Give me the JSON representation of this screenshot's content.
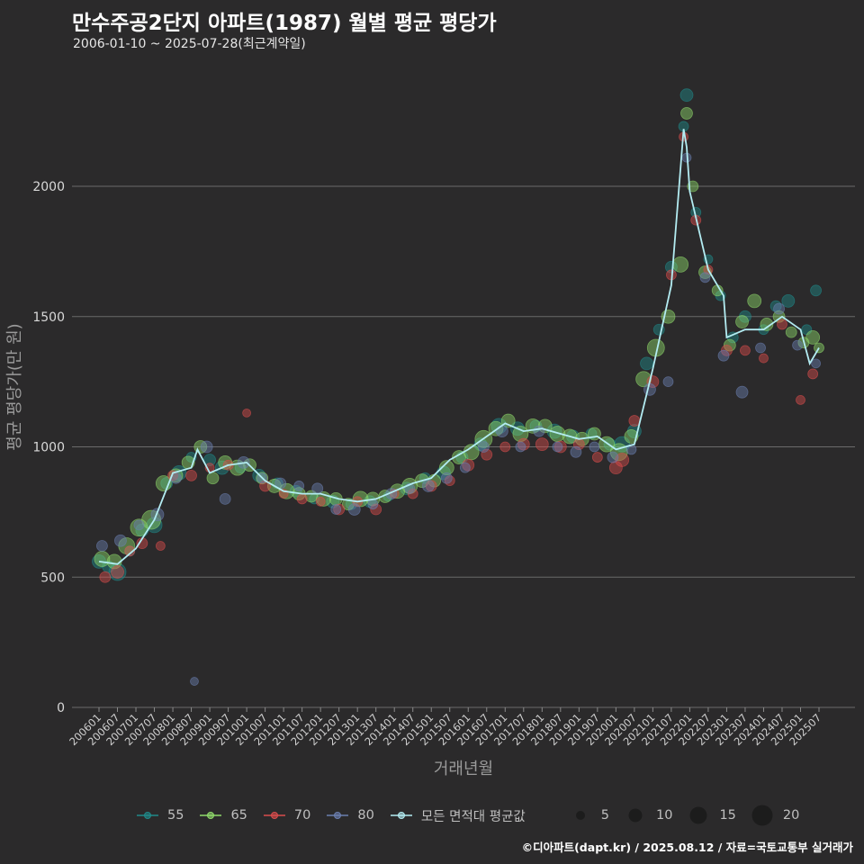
{
  "header": {
    "title": "만수주공2단지 아파트(1987) 월별 평균 평당가",
    "subtitle": "2006-01-10 ~ 2025-07-28(최근계약일)"
  },
  "footer": {
    "credit": "©디아파트(dapt.kr) / 2025.08.12 / 자료=국토교통부 실거래가"
  },
  "colors": {
    "background": "#2b2a2b",
    "grid": "#6b6b6b",
    "area_55": "#1f8a8a",
    "area_65": "#8fd96b",
    "area_70": "#d94c4c",
    "area_80": "#6b7fb0",
    "avg_line": "#b3ecf2"
  },
  "chart_data": {
    "type": "scatter",
    "title": "만수주공2단지 아파트(1987) 월별 평균 평당가",
    "xlabel": "거래년월",
    "ylabel": "평균 평당가(만 원)",
    "ylim": [
      0,
      2400
    ],
    "yticks": [
      0,
      500,
      1000,
      1500,
      2000
    ],
    "grid": true,
    "xticks": [
      "200601",
      "200607",
      "200701",
      "200707",
      "200801",
      "200807",
      "200901",
      "200907",
      "201001",
      "201007",
      "201101",
      "201107",
      "201201",
      "201207",
      "201301",
      "201307",
      "201401",
      "201407",
      "201501",
      "201507",
      "201601",
      "201607",
      "201701",
      "201707",
      "201801",
      "201807",
      "201901",
      "201907",
      "202001",
      "202007",
      "202101",
      "202107",
      "202201",
      "202207",
      "202301",
      "202307",
      "202401",
      "202407",
      "202501",
      "202507"
    ],
    "avg_line_label": "모든 면적대 평균값",
    "average_line": {
      "months": [
        "200601",
        "200607",
        "200701",
        "200707",
        "200801",
        "200807",
        "200809",
        "200901",
        "200907",
        "201001",
        "201007",
        "201101",
        "201107",
        "201201",
        "201207",
        "201301",
        "201307",
        "201401",
        "201407",
        "201501",
        "201507",
        "201601",
        "201607",
        "201701",
        "201707",
        "201801",
        "201807",
        "201901",
        "201907",
        "202001",
        "202007",
        "202101",
        "202107",
        "202111",
        "202112",
        "202201",
        "202207",
        "202212",
        "202301",
        "202307",
        "202401",
        "202407",
        "202501",
        "202504",
        "202507"
      ],
      "values": [
        560,
        550,
        610,
        720,
        900,
        920,
        990,
        900,
        930,
        940,
        870,
        830,
        820,
        820,
        800,
        790,
        800,
        830,
        860,
        880,
        950,
        990,
        1040,
        1090,
        1060,
        1070,
        1050,
        1030,
        1040,
        990,
        1010,
        1300,
        1620,
        2220,
        2150,
        1980,
        1680,
        1580,
        1420,
        1450,
        1450,
        1500,
        1450,
        1320,
        1380
      ]
    },
    "series": [
      {
        "name": "55",
        "points": [
          [
            "200601",
            560,
            10
          ],
          [
            "200604",
            540,
            8
          ],
          [
            "200607",
            520,
            14
          ],
          [
            "200611",
            600,
            6
          ],
          [
            "200703",
            680,
            9
          ],
          [
            "200707",
            700,
            12
          ],
          [
            "200711",
            860,
            8
          ],
          [
            "200803",
            900,
            11
          ],
          [
            "200807",
            960,
            6
          ],
          [
            "200901",
            950,
            8
          ],
          [
            "200905",
            920,
            10
          ],
          [
            "200911",
            920,
            7
          ],
          [
            "201005",
            890,
            9
          ],
          [
            "201011",
            860,
            7
          ],
          [
            "201105",
            830,
            8
          ],
          [
            "201111",
            800,
            6
          ],
          [
            "201205",
            790,
            9
          ],
          [
            "201211",
            780,
            7
          ],
          [
            "201305",
            790,
            8
          ],
          [
            "201311",
            810,
            6
          ],
          [
            "201405",
            840,
            9
          ],
          [
            "201411",
            880,
            7
          ],
          [
            "201505",
            900,
            10
          ],
          [
            "201511",
            960,
            8
          ],
          [
            "201605",
            1010,
            9
          ],
          [
            "201611",
            1080,
            12
          ],
          [
            "201705",
            1070,
            10
          ],
          [
            "201711",
            1080,
            8
          ],
          [
            "201805",
            1060,
            11
          ],
          [
            "201811",
            1040,
            9
          ],
          [
            "201905",
            1050,
            7
          ],
          [
            "201911",
            1010,
            8
          ],
          [
            "202003",
            1010,
            12
          ],
          [
            "202007",
            1060,
            10
          ],
          [
            "202011",
            1320,
            9
          ],
          [
            "202103",
            1450,
            7
          ],
          [
            "202107",
            1690,
            8
          ],
          [
            "202111",
            2230,
            6
          ],
          [
            "202112",
            2350,
            9
          ],
          [
            "202203",
            1900,
            6
          ],
          [
            "202207",
            1720,
            5
          ],
          [
            "202211",
            1580,
            6
          ],
          [
            "202303",
            1420,
            7
          ],
          [
            "202307",
            1500,
            8
          ],
          [
            "202401",
            1450,
            6
          ],
          [
            "202405",
            1540,
            7
          ],
          [
            "202409",
            1560,
            9
          ],
          [
            "202503",
            1450,
            6
          ],
          [
            "202506",
            1600,
            7
          ]
        ]
      },
      {
        "name": "65",
        "points": [
          [
            "200602",
            570,
            12
          ],
          [
            "200606",
            560,
            11
          ],
          [
            "200610",
            620,
            13
          ],
          [
            "200702",
            690,
            14
          ],
          [
            "200706",
            720,
            16
          ],
          [
            "200710",
            860,
            12
          ],
          [
            "200802",
            890,
            10
          ],
          [
            "200806",
            940,
            9
          ],
          [
            "200810",
            1000,
            9
          ],
          [
            "200902",
            880,
            8
          ],
          [
            "200906",
            940,
            10
          ],
          [
            "200910",
            920,
            12
          ],
          [
            "201002",
            930,
            9
          ],
          [
            "201006",
            880,
            8
          ],
          [
            "201010",
            850,
            10
          ],
          [
            "201102",
            830,
            12
          ],
          [
            "201106",
            820,
            9
          ],
          [
            "201110",
            810,
            8
          ],
          [
            "201202",
            800,
            11
          ],
          [
            "201206",
            800,
            9
          ],
          [
            "201210",
            780,
            8
          ],
          [
            "201302",
            800,
            12
          ],
          [
            "201306",
            800,
            10
          ],
          [
            "201310",
            810,
            9
          ],
          [
            "201402",
            830,
            11
          ],
          [
            "201406",
            850,
            12
          ],
          [
            "201410",
            870,
            10
          ],
          [
            "201502",
            870,
            9
          ],
          [
            "201506",
            920,
            11
          ],
          [
            "201510",
            960,
            10
          ],
          [
            "201602",
            980,
            12
          ],
          [
            "201606",
            1030,
            14
          ],
          [
            "201610",
            1070,
            11
          ],
          [
            "201702",
            1100,
            10
          ],
          [
            "201706",
            1050,
            12
          ],
          [
            "201710",
            1080,
            11
          ],
          [
            "201802",
            1080,
            10
          ],
          [
            "201806",
            1050,
            12
          ],
          [
            "201810",
            1040,
            11
          ],
          [
            "201902",
            1030,
            10
          ],
          [
            "201906",
            1050,
            9
          ],
          [
            "201910",
            1010,
            12
          ],
          [
            "202002",
            980,
            14
          ],
          [
            "202006",
            1040,
            10
          ],
          [
            "202010",
            1260,
            12
          ],
          [
            "202102",
            1380,
            14
          ],
          [
            "202106",
            1500,
            10
          ],
          [
            "202110",
            1700,
            12
          ],
          [
            "202112",
            2280,
            8
          ],
          [
            "202202",
            2000,
            7
          ],
          [
            "202206",
            1670,
            9
          ],
          [
            "202210",
            1600,
            7
          ],
          [
            "202302",
            1390,
            8
          ],
          [
            "202306",
            1480,
            9
          ],
          [
            "202310",
            1560,
            10
          ],
          [
            "202402",
            1470,
            9
          ],
          [
            "202406",
            1500,
            8
          ],
          [
            "202410",
            1440,
            7
          ],
          [
            "202502",
            1400,
            7
          ],
          [
            "202505",
            1420,
            10
          ],
          [
            "202507",
            1380,
            6
          ]
        ]
      },
      {
        "name": "70",
        "points": [
          [
            "200603",
            500,
            7
          ],
          [
            "200607",
            520,
            9
          ],
          [
            "200611",
            600,
            6
          ],
          [
            "200703",
            630,
            7
          ],
          [
            "200709",
            620,
            5
          ],
          [
            "200801",
            890,
            6
          ],
          [
            "200807",
            890,
            7
          ],
          [
            "200901",
            920,
            5
          ],
          [
            "200907",
            930,
            6
          ],
          [
            "201001",
            1130,
            4
          ],
          [
            "201007",
            850,
            7
          ],
          [
            "201101",
            820,
            5
          ],
          [
            "201107",
            800,
            6
          ],
          [
            "201201",
            790,
            5
          ],
          [
            "201207",
            760,
            7
          ],
          [
            "201301",
            790,
            6
          ],
          [
            "201307",
            760,
            7
          ],
          [
            "201401",
            820,
            5
          ],
          [
            "201407",
            820,
            6
          ],
          [
            "201501",
            850,
            7
          ],
          [
            "201507",
            870,
            6
          ],
          [
            "201601",
            930,
            8
          ],
          [
            "201607",
            970,
            7
          ],
          [
            "201701",
            1000,
            6
          ],
          [
            "201707",
            1010,
            8
          ],
          [
            "201801",
            1010,
            9
          ],
          [
            "201807",
            1000,
            8
          ],
          [
            "201901",
            1010,
            7
          ],
          [
            "201907",
            960,
            6
          ],
          [
            "202001",
            920,
            9
          ],
          [
            "202003",
            950,
            10
          ],
          [
            "202007",
            1100,
            7
          ],
          [
            "202101",
            1250,
            8
          ],
          [
            "202107",
            1660,
            6
          ],
          [
            "202111",
            2190,
            5
          ],
          [
            "202203",
            1870,
            6
          ],
          [
            "202207",
            1680,
            5
          ],
          [
            "202301",
            1370,
            7
          ],
          [
            "202307",
            1370,
            6
          ],
          [
            "202401",
            1340,
            5
          ],
          [
            "202407",
            1470,
            6
          ],
          [
            "202501",
            1180,
            5
          ],
          [
            "202505",
            1280,
            6
          ]
        ]
      },
      {
        "name": "80",
        "points": [
          [
            "200602",
            620,
            7
          ],
          [
            "200608",
            640,
            8
          ],
          [
            "200702",
            700,
            6
          ],
          [
            "200708",
            740,
            9
          ],
          [
            "200802",
            880,
            7
          ],
          [
            "200808",
            100,
            4
          ],
          [
            "200812",
            1000,
            8
          ],
          [
            "200906",
            800,
            7
          ],
          [
            "200912",
            940,
            8
          ],
          [
            "201006",
            880,
            6
          ],
          [
            "201012",
            860,
            7
          ],
          [
            "201106",
            850,
            6
          ],
          [
            "201112",
            840,
            7
          ],
          [
            "201206",
            760,
            6
          ],
          [
            "201212",
            760,
            8
          ],
          [
            "201306",
            780,
            6
          ],
          [
            "201312",
            820,
            7
          ],
          [
            "201406",
            840,
            6
          ],
          [
            "201412",
            850,
            8
          ],
          [
            "201506",
            880,
            7
          ],
          [
            "201512",
            920,
            6
          ],
          [
            "201606",
            1000,
            7
          ],
          [
            "201612",
            1060,
            8
          ],
          [
            "201706",
            1000,
            6
          ],
          [
            "201712",
            1060,
            7
          ],
          [
            "201806",
            1000,
            6
          ],
          [
            "201812",
            980,
            7
          ],
          [
            "201906",
            1000,
            6
          ],
          [
            "201912",
            960,
            7
          ],
          [
            "202006",
            990,
            6
          ],
          [
            "202012",
            1220,
            8
          ],
          [
            "202106",
            1250,
            6
          ],
          [
            "202112",
            2110,
            5
          ],
          [
            "202206",
            1650,
            6
          ],
          [
            "202212",
            1350,
            7
          ],
          [
            "202306",
            1210,
            8
          ],
          [
            "202312",
            1380,
            6
          ],
          [
            "202406",
            1530,
            7
          ],
          [
            "202412",
            1390,
            6
          ],
          [
            "202506",
            1320,
            5
          ]
        ]
      }
    ],
    "size_legend": {
      "values": [
        5,
        10,
        15,
        20
      ]
    }
  }
}
